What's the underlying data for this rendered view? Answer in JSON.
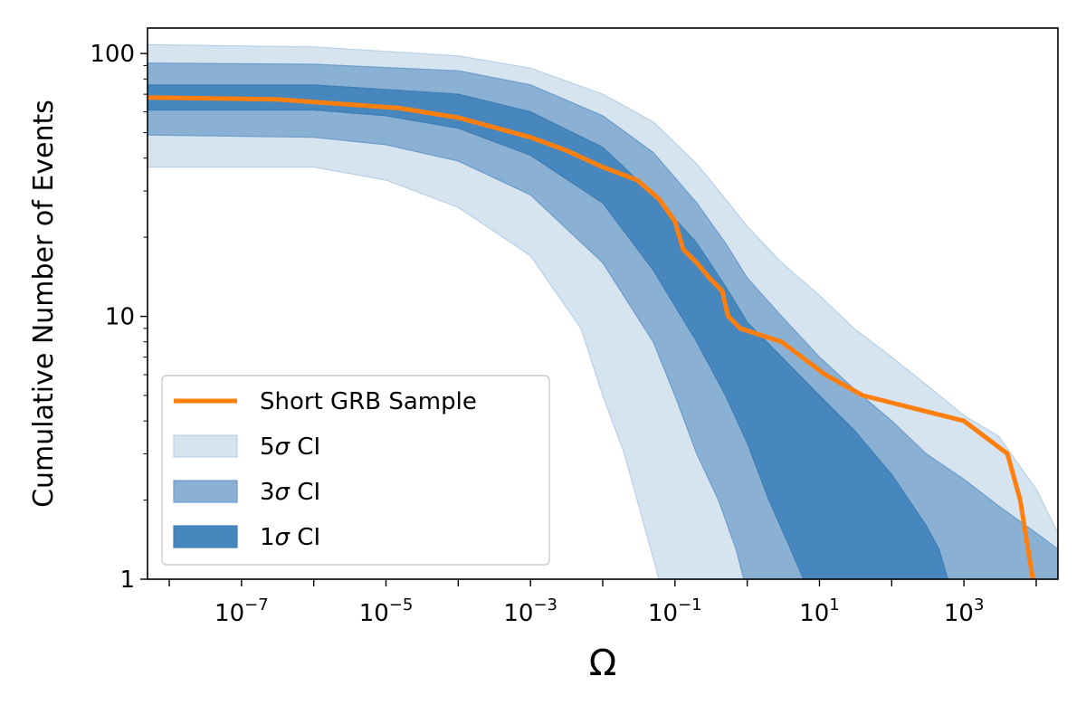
{
  "chart_data": {
    "type": "line",
    "title": "",
    "xlabel": "Ω",
    "ylabel": "Cumulative Number of Events",
    "xscale": "log",
    "yscale": "log",
    "xlim": [
      5e-09,
      20000
    ],
    "ylim": [
      1,
      125
    ],
    "xticks": [
      {
        "value": 1e-07,
        "base": "10",
        "exp": "−7"
      },
      {
        "value": 1e-05,
        "base": "10",
        "exp": "−5"
      },
      {
        "value": 0.001,
        "base": "10",
        "exp": "−3"
      },
      {
        "value": 0.1,
        "base": "10",
        "exp": "−1"
      },
      {
        "value": 10,
        "base": "10",
        "exp": "1"
      },
      {
        "value": 1000,
        "base": "10",
        "exp": "3"
      }
    ],
    "yticks": [
      {
        "value": 1,
        "label": "1"
      },
      {
        "value": 10,
        "label": "10"
      },
      {
        "value": 100,
        "label": "100"
      }
    ],
    "legend_position": "lower-left",
    "legend": [
      {
        "key": "line",
        "label": "Short GRB Sample",
        "sym": ""
      },
      {
        "key": "ci5",
        "label": "5",
        "sym": "σ",
        "suffix": " CI"
      },
      {
        "key": "ci3",
        "label": "3",
        "sym": "σ",
        "suffix": " CI"
      },
      {
        "key": "ci1",
        "label": "1",
        "sym": "σ",
        "suffix": " CI"
      }
    ],
    "colors": {
      "line": "#ff7f0e",
      "ci5": "#d6e4f0",
      "ci3": "#8ab1d4",
      "ci1": "#4787bd",
      "ci5_edge": "#b9d0e6",
      "ci3_edge": "#6e9ccb",
      "ci1_edge": "#3f7db4"
    },
    "series": [
      {
        "name": "Short GRB Sample",
        "type": "line",
        "points": [
          [
            5e-09,
            68
          ],
          [
            3e-07,
            67
          ],
          [
            1.5e-05,
            62
          ],
          [
            0.0001,
            57
          ],
          [
            0.001,
            48
          ],
          [
            0.003,
            43
          ],
          [
            0.01,
            37
          ],
          [
            0.03,
            33
          ],
          [
            0.06,
            28
          ],
          [
            0.1,
            23
          ],
          [
            0.13,
            18
          ],
          [
            0.2,
            16
          ],
          [
            0.3,
            14
          ],
          [
            0.45,
            12.5
          ],
          [
            0.52,
            10.5
          ],
          [
            0.55,
            10
          ],
          [
            0.8,
            9
          ],
          [
            3,
            8
          ],
          [
            12,
            6
          ],
          [
            40,
            5
          ],
          [
            1000,
            4
          ],
          [
            4000,
            3
          ],
          [
            6000,
            2
          ],
          [
            9000,
            1
          ]
        ]
      },
      {
        "name": "5σ CI",
        "type": "band",
        "upper": [
          [
            5e-09,
            108
          ],
          [
            1e-06,
            106
          ],
          [
            0.0001,
            98
          ],
          [
            0.001,
            88
          ],
          [
            0.01,
            70
          ],
          [
            0.05,
            55
          ],
          [
            0.2,
            38
          ],
          [
            0.5,
            28
          ],
          [
            1,
            22
          ],
          [
            3,
            16
          ],
          [
            10,
            12
          ],
          [
            30,
            9
          ],
          [
            100,
            7
          ],
          [
            300,
            5.5
          ],
          [
            1000,
            4.2
          ],
          [
            3000,
            3.5
          ],
          [
            10000,
            2.2
          ],
          [
            20000,
            1.5
          ]
        ],
        "lower": [
          [
            5e-09,
            37
          ],
          [
            1e-06,
            37
          ],
          [
            1e-05,
            33
          ],
          [
            0.0001,
            26
          ],
          [
            0.001,
            17
          ],
          [
            0.005,
            9
          ],
          [
            0.01,
            5
          ],
          [
            0.02,
            3
          ],
          [
            0.03,
            2
          ],
          [
            0.05,
            1.2
          ],
          [
            0.06,
            1
          ]
        ]
      },
      {
        "name": "3σ CI",
        "type": "band",
        "upper": [
          [
            5e-09,
            92
          ],
          [
            1e-06,
            91
          ],
          [
            0.0001,
            86
          ],
          [
            0.001,
            76
          ],
          [
            0.01,
            58
          ],
          [
            0.05,
            42
          ],
          [
            0.2,
            27
          ],
          [
            0.5,
            19
          ],
          [
            1,
            14
          ],
          [
            3,
            10
          ],
          [
            10,
            7
          ],
          [
            30,
            5.3
          ],
          [
            100,
            4.0
          ],
          [
            300,
            3.0
          ],
          [
            1000,
            2.4
          ],
          [
            3000,
            1.9
          ],
          [
            10000,
            1.5
          ],
          [
            20000,
            1.3
          ]
        ],
        "lower": [
          [
            5e-09,
            49
          ],
          [
            1e-06,
            48
          ],
          [
            1e-05,
            45
          ],
          [
            0.0001,
            39
          ],
          [
            0.001,
            29
          ],
          [
            0.01,
            16
          ],
          [
            0.05,
            8
          ],
          [
            0.1,
            5
          ],
          [
            0.2,
            3
          ],
          [
            0.4,
            2
          ],
          [
            0.7,
            1.3
          ],
          [
            0.9,
            1
          ]
        ]
      },
      {
        "name": "1σ CI",
        "type": "band",
        "upper": [
          [
            5e-09,
            76
          ],
          [
            1e-06,
            76
          ],
          [
            0.0001,
            70
          ],
          [
            0.001,
            60
          ],
          [
            0.01,
            44
          ],
          [
            0.05,
            29
          ],
          [
            0.2,
            19
          ],
          [
            0.5,
            13
          ],
          [
            1,
            9.5
          ],
          [
            3,
            7
          ],
          [
            10,
            5
          ],
          [
            30,
            3.7
          ],
          [
            100,
            2.5
          ],
          [
            300,
            1.6
          ],
          [
            450,
            1.3
          ],
          [
            600,
            1
          ]
        ],
        "lower": [
          [
            5e-09,
            61
          ],
          [
            1e-06,
            61
          ],
          [
            1e-05,
            58
          ],
          [
            0.0001,
            52
          ],
          [
            0.001,
            41
          ],
          [
            0.01,
            27
          ],
          [
            0.05,
            15
          ],
          [
            0.2,
            8
          ],
          [
            0.5,
            5
          ],
          [
            1,
            3.3
          ],
          [
            2,
            2
          ],
          [
            4,
            1.3
          ],
          [
            6,
            1
          ]
        ]
      }
    ]
  }
}
